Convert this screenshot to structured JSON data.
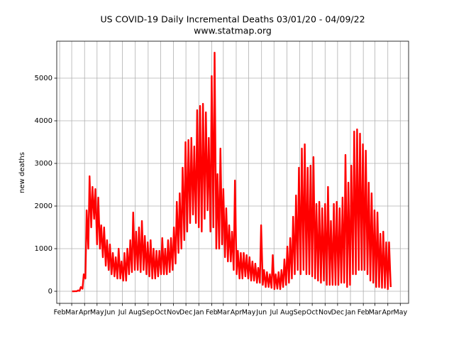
{
  "chart_data": {
    "type": "line",
    "title": "US COVID-19 Daily Incremental Deaths 03/01/20 - 04/09/22",
    "subtitle": "www.statmap.org",
    "ylabel": "new deaths",
    "color": "#ff0000",
    "grid": true,
    "xlim": [
      -36,
      811
    ],
    "ylim": [
      -283,
      5867
    ],
    "yticks": [
      0,
      1000,
      2000,
      3000,
      4000,
      5000
    ],
    "xticks": [
      {
        "value": -29,
        "label": "Feb"
      },
      {
        "value": 0,
        "label": "Mar"
      },
      {
        "value": 31,
        "label": "Apr"
      },
      {
        "value": 61,
        "label": "May"
      },
      {
        "value": 92,
        "label": "Jun"
      },
      {
        "value": 122,
        "label": "Jul"
      },
      {
        "value": 153,
        "label": "Aug"
      },
      {
        "value": 184,
        "label": "Sep"
      },
      {
        "value": 214,
        "label": "Oct"
      },
      {
        "value": 245,
        "label": "Nov"
      },
      {
        "value": 275,
        "label": "Dec"
      },
      {
        "value": 306,
        "label": "Jan"
      },
      {
        "value": 337,
        "label": "Feb"
      },
      {
        "value": 365,
        "label": "Mar"
      },
      {
        "value": 396,
        "label": "Apr"
      },
      {
        "value": 426,
        "label": "May"
      },
      {
        "value": 457,
        "label": "Jun"
      },
      {
        "value": 487,
        "label": "Jul"
      },
      {
        "value": 518,
        "label": "Aug"
      },
      {
        "value": 549,
        "label": "Sep"
      },
      {
        "value": 579,
        "label": "Oct"
      },
      {
        "value": 610,
        "label": "Nov"
      },
      {
        "value": 640,
        "label": "Dec"
      },
      {
        "value": 671,
        "label": "Jan"
      },
      {
        "value": 702,
        "label": "Feb"
      },
      {
        "value": 730,
        "label": "Mar"
      },
      {
        "value": 761,
        "label": "Apr"
      },
      {
        "value": 791,
        "label": "May"
      }
    ],
    "x": [
      1,
      5,
      8,
      12,
      15,
      19,
      22,
      26,
      29,
      33,
      36,
      40,
      43,
      47,
      50,
      54,
      57,
      61,
      64,
      68,
      71,
      75,
      78,
      82,
      85,
      89,
      92,
      96,
      99,
      103,
      106,
      110,
      113,
      117,
      120,
      124,
      127,
      131,
      134,
      138,
      141,
      145,
      148,
      152,
      155,
      159,
      162,
      166,
      169,
      173,
      176,
      180,
      183,
      187,
      190,
      194,
      197,
      201,
      204,
      208,
      211,
      215,
      218,
      222,
      225,
      229,
      232,
      236,
      239,
      243,
      246,
      250,
      253,
      257,
      260,
      264,
      267,
      271,
      274,
      278,
      281,
      285,
      288,
      292,
      295,
      299,
      302,
      306,
      309,
      313,
      316,
      320,
      323,
      327,
      330,
      334,
      337,
      341,
      344,
      348,
      351,
      355,
      358,
      362,
      365,
      369,
      372,
      376,
      379,
      383,
      386,
      390,
      393,
      397,
      400,
      404,
      407,
      411,
      414,
      418,
      421,
      425,
      428,
      432,
      435,
      439,
      442,
      446,
      449,
      453,
      456,
      460,
      463,
      467,
      470,
      474,
      477,
      481,
      484,
      488,
      491,
      495,
      498,
      502,
      505,
      509,
      512,
      516,
      519,
      523,
      526,
      530,
      533,
      537,
      540,
      544,
      547,
      551,
      554,
      558,
      561,
      565,
      568,
      572,
      575,
      579,
      582,
      586,
      589,
      593,
      596,
      600,
      603,
      607,
      610,
      614,
      617,
      621,
      624,
      628,
      631,
      635,
      638,
      642,
      645,
      649,
      652,
      656,
      659,
      663,
      666,
      670,
      673,
      677,
      680,
      684,
      687,
      691,
      694,
      698,
      701,
      705,
      708,
      712,
      715,
      719,
      722,
      726,
      729,
      733,
      736,
      740,
      743,
      747,
      750,
      754,
      757,
      761,
      764,
      768
    ],
    "values": [
      0,
      0,
      2,
      1,
      20,
      10,
      100,
      60,
      400,
      300,
      1900,
      1000,
      2700,
      1500,
      2450,
      1700,
      2400,
      1100,
      2200,
      1000,
      1550,
      800,
      1500,
      600,
      1200,
      500,
      1100,
      400,
      900,
      350,
      800,
      300,
      1000,
      300,
      700,
      250,
      900,
      250,
      1000,
      400,
      1200,
      450,
      1850,
      500,
      1400,
      500,
      1500,
      450,
      1650,
      500,
      1300,
      400,
      1150,
      350,
      1200,
      300,
      1000,
      300,
      950,
      350,
      950,
      400,
      1250,
      400,
      1000,
      400,
      1200,
      450,
      1250,
      500,
      1500,
      650,
      2100,
      900,
      2300,
      1000,
      2900,
      1200,
      3500,
      1400,
      3550,
      1600,
      3600,
      1800,
      3400,
      1600,
      4250,
      1500,
      4350,
      1400,
      4400,
      1700,
      4200,
      1900,
      3600,
      1400,
      5050,
      1500,
      5600,
      1000,
      2750,
      1000,
      3350,
      1100,
      2400,
      800,
      1950,
      700,
      1550,
      700,
      1400,
      500,
      2600,
      400,
      950,
      300,
      900,
      300,
      900,
      350,
      850,
      300,
      800,
      250,
      700,
      250,
      650,
      200,
      550,
      200,
      1550,
      150,
      500,
      100,
      450,
      100,
      400,
      80,
      850,
      50,
      400,
      60,
      450,
      50,
      500,
      100,
      750,
      150,
      1050,
      200,
      1250,
      300,
      1750,
      400,
      2250,
      500,
      2900,
      400,
      3350,
      500,
      3450,
      400,
      2900,
      400,
      2950,
      350,
      3150,
      300,
      2050,
      250,
      2100,
      200,
      1950,
      250,
      2050,
      150,
      2450,
      150,
      1650,
      150,
      2050,
      150,
      2100,
      150,
      1950,
      200,
      2200,
      200,
      3200,
      100,
      2550,
      150,
      2950,
      400,
      3750,
      400,
      3800,
      500,
      3700,
      500,
      3450,
      500,
      3300,
      400,
      2550,
      250,
      2300,
      200,
      1900,
      100,
      1850,
      100,
      1350,
      80,
      1400,
      80,
      1150,
      50,
      1150,
      100
    ]
  }
}
